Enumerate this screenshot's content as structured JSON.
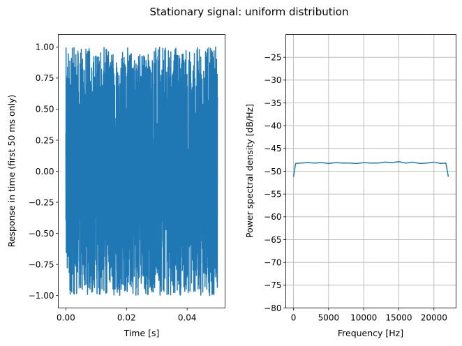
{
  "figure": {
    "suptitle": "Stationary signal: uniform distribution"
  },
  "chart_data": [
    {
      "type": "line",
      "xlabel": "Time [s]",
      "ylabel": "Response in time (first 50 ms only)",
      "xlim": [
        -0.0025,
        0.0525
      ],
      "ylim": [
        -1.1,
        1.1
      ],
      "xticks": [
        0.0,
        0.02,
        0.04
      ],
      "xtick_labels": [
        "0.00",
        "0.02",
        "0.04"
      ],
      "yticks": [
        -1.0,
        -0.75,
        -0.5,
        -0.25,
        0.0,
        0.25,
        0.5,
        0.75,
        1.0
      ],
      "ytick_labels": [
        "−1.00",
        "−0.75",
        "−0.50",
        "−0.25",
        "0.00",
        "0.25",
        "0.50",
        "0.75",
        "1.00"
      ],
      "grid": false,
      "series": [
        {
          "color": "#1f77b4",
          "signal": "uniform random noise in [-1, 1]",
          "x_range": [
            0.0,
            0.05
          ],
          "value_range": [
            -1.0,
            1.0
          ]
        }
      ]
    },
    {
      "type": "line",
      "xlabel": "Frequency [Hz]",
      "ylabel": "Power spectral density [dB/Hz]",
      "xlim": [
        -1100,
        23150
      ],
      "ylim": [
        -80,
        -20
      ],
      "xticks": [
        0,
        5000,
        10000,
        15000,
        20000
      ],
      "xtick_labels": [
        "0",
        "5000",
        "10000",
        "15000",
        "20000"
      ],
      "yticks": [
        -80,
        -75,
        -70,
        -65,
        -60,
        -55,
        -50,
        -45,
        -40,
        -35,
        -30,
        -25
      ],
      "ytick_labels": [
        "−80",
        "−75",
        "−70",
        "−65",
        "−60",
        "−55",
        "−50",
        "−45",
        "−40",
        "−35",
        "−30",
        "−25"
      ],
      "grid": true,
      "series": [
        {
          "color": "#1f77b4",
          "x": [
            0,
            300,
            1000,
            2000,
            3000,
            4000,
            5000,
            6000,
            7000,
            8000,
            9000,
            10000,
            11000,
            12000,
            13000,
            14000,
            15000,
            16000,
            17000,
            18000,
            19000,
            20000,
            21000,
            21700,
            22050
          ],
          "values": [
            -51.2,
            -48.3,
            -48.2,
            -48.1,
            -48.2,
            -48.1,
            -48.3,
            -48.1,
            -48.2,
            -48.2,
            -48.3,
            -48.1,
            -48.2,
            -48.2,
            -48.0,
            -48.1,
            -47.9,
            -48.2,
            -48.0,
            -48.3,
            -48.2,
            -48.0,
            -48.3,
            -48.2,
            -51.2
          ]
        }
      ]
    }
  ]
}
